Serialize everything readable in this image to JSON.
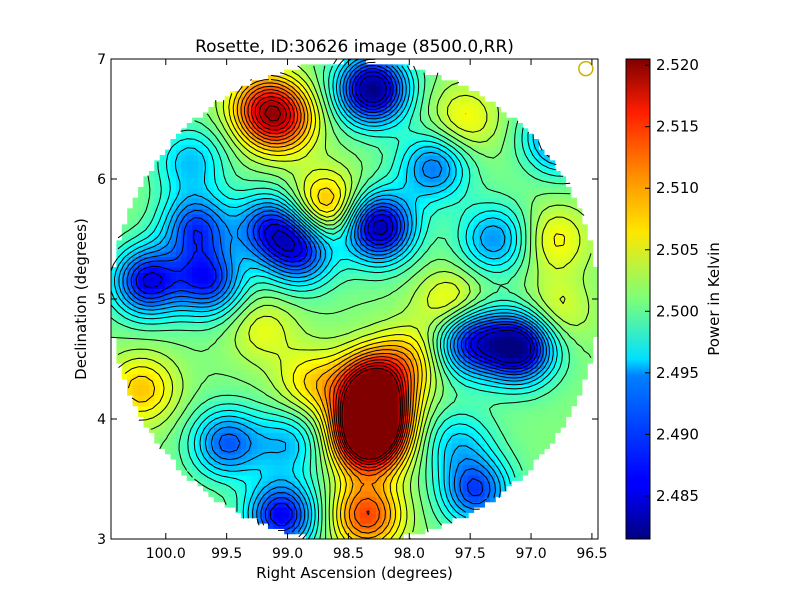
{
  "chart_data": {
    "type": "heatmap",
    "title": "Rosette, ID:30626 image (8500.0,RR)",
    "xlabel": "Right Ascension (degrees)",
    "ylabel": "Declination (degrees)",
    "xlim": [
      100.45,
      96.45
    ],
    "ylim": [
      3.0,
      7.0
    ],
    "x_ticks": [
      "100.0",
      "99.5",
      "99.0",
      "98.5",
      "98.0",
      "97.5",
      "97.0",
      "96.5"
    ],
    "y_ticks": [
      "3",
      "4",
      "5",
      "6",
      "7"
    ],
    "x_tick_values": [
      100.0,
      99.5,
      99.0,
      98.5,
      98.0,
      97.5,
      97.0,
      96.5
    ],
    "y_tick_values": [
      3,
      4,
      5,
      6,
      7
    ],
    "colorbar": {
      "label": "Power in Kelvin",
      "range": [
        2.4815,
        2.5205
      ],
      "ticks": [
        "2.485",
        "2.490",
        "2.495",
        "2.500",
        "2.505",
        "2.510",
        "2.515",
        "2.520"
      ],
      "tick_values": [
        2.485,
        2.49,
        2.495,
        2.5,
        2.505,
        2.51,
        2.515,
        2.52
      ],
      "colormap": "jet"
    },
    "map": {
      "center": [
        98.45,
        4.98
      ],
      "radius_deg": 2.0,
      "baseline": 2.501,
      "features": [
        {
          "x": 98.3,
          "y": 4.05,
          "value": 2.5195
        },
        {
          "x": 98.33,
          "y": 3.82,
          "value": 2.5205
        },
        {
          "x": 98.3,
          "y": 4.3,
          "value": 2.516
        },
        {
          "x": 98.35,
          "y": 3.2,
          "value": 2.513
        },
        {
          "x": 99.05,
          "y": 6.5,
          "value": 2.512
        },
        {
          "x": 99.2,
          "y": 6.6,
          "value": 2.511
        },
        {
          "x": 98.68,
          "y": 5.78,
          "value": 2.51
        },
        {
          "x": 100.2,
          "y": 4.25,
          "value": 2.508
        },
        {
          "x": 98.8,
          "y": 4.3,
          "value": 2.507
        },
        {
          "x": 98.0,
          "y": 4.5,
          "value": 2.507
        },
        {
          "x": 97.65,
          "y": 4.95,
          "value": 2.507
        },
        {
          "x": 96.8,
          "y": 5.5,
          "value": 2.506
        },
        {
          "x": 96.8,
          "y": 4.9,
          "value": 2.505
        },
        {
          "x": 97.55,
          "y": 6.5,
          "value": 2.506
        },
        {
          "x": 99.2,
          "y": 4.75,
          "value": 2.505
        },
        {
          "x": 98.3,
          "y": 6.75,
          "value": 2.4815
        },
        {
          "x": 98.25,
          "y": 5.6,
          "value": 2.483
        },
        {
          "x": 97.1,
          "y": 4.6,
          "value": 2.482
        },
        {
          "x": 97.5,
          "y": 4.65,
          "value": 2.487
        },
        {
          "x": 100.15,
          "y": 5.15,
          "value": 2.486
        },
        {
          "x": 99.65,
          "y": 5.15,
          "value": 2.488
        },
        {
          "x": 98.9,
          "y": 5.4,
          "value": 2.488
        },
        {
          "x": 99.05,
          "y": 3.2,
          "value": 2.486
        },
        {
          "x": 99.75,
          "y": 5.6,
          "value": 2.489
        },
        {
          "x": 99.15,
          "y": 5.6,
          "value": 2.489
        },
        {
          "x": 99.5,
          "y": 3.8,
          "value": 2.49
        },
        {
          "x": 97.45,
          "y": 3.4,
          "value": 2.489
        },
        {
          "x": 96.75,
          "y": 6.35,
          "value": 2.489
        },
        {
          "x": 97.8,
          "y": 6.1,
          "value": 2.491
        },
        {
          "x": 97.3,
          "y": 5.5,
          "value": 2.492
        },
        {
          "x": 99.8,
          "y": 6.15,
          "value": 2.494
        },
        {
          "x": 99.0,
          "y": 3.8,
          "value": 2.494
        },
        {
          "x": 97.6,
          "y": 3.8,
          "value": 2.495
        }
      ]
    },
    "beam_marker": {
      "x": 96.55,
      "y": 6.92
    }
  }
}
